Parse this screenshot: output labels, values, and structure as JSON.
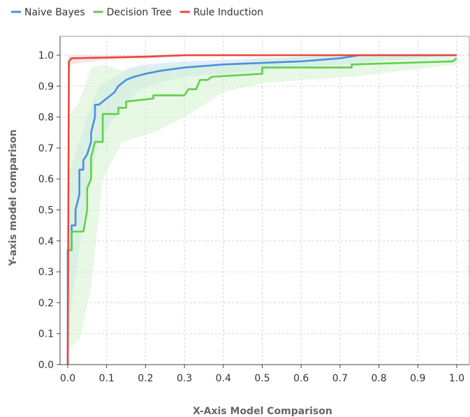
{
  "chart_data": {
    "type": "line",
    "title": "",
    "xlabel": "X-Axis Model Comparison",
    "ylabel": "Y-axis model comparison",
    "xlim": [
      0,
      1
    ],
    "ylim": [
      0,
      1
    ],
    "xticks": [
      "0.0",
      "0.1",
      "0.2",
      "0.3",
      "0.4",
      "0.5",
      "0.6",
      "0.7",
      "0.8",
      "0.9",
      "1.0"
    ],
    "yticks": [
      "0.0",
      "0.1",
      "0.2",
      "0.3",
      "0.4",
      "0.5",
      "0.6",
      "0.7",
      "0.8",
      "0.9",
      "1.0"
    ],
    "grid": true,
    "legend_position": "top-left",
    "series": [
      {
        "name": "Naive Bayes",
        "color": "#4a90e2",
        "band_color": "#c8def5",
        "points": [
          [
            0,
            0
          ],
          [
            0,
            0.37
          ],
          [
            0.01,
            0.37
          ],
          [
            0.01,
            0.45
          ],
          [
            0.02,
            0.45
          ],
          [
            0.02,
            0.5
          ],
          [
            0.03,
            0.55
          ],
          [
            0.03,
            0.63
          ],
          [
            0.04,
            0.63
          ],
          [
            0.04,
            0.66
          ],
          [
            0.05,
            0.68
          ],
          [
            0.06,
            0.72
          ],
          [
            0.06,
            0.75
          ],
          [
            0.07,
            0.8
          ],
          [
            0.07,
            0.84
          ],
          [
            0.08,
            0.84
          ],
          [
            0.09,
            0.85
          ],
          [
            0.1,
            0.86
          ],
          [
            0.11,
            0.87
          ],
          [
            0.12,
            0.88
          ],
          [
            0.13,
            0.9
          ],
          [
            0.14,
            0.91
          ],
          [
            0.15,
            0.92
          ],
          [
            0.17,
            0.93
          ],
          [
            0.2,
            0.94
          ],
          [
            0.24,
            0.95
          ],
          [
            0.3,
            0.96
          ],
          [
            0.4,
            0.97
          ],
          [
            0.5,
            0.975
          ],
          [
            0.6,
            0.98
          ],
          [
            0.7,
            0.99
          ],
          [
            0.75,
            1.0
          ],
          [
            1.0,
            1.0
          ]
        ],
        "band_upper": [
          [
            0,
            0.6
          ],
          [
            0.03,
            0.72
          ],
          [
            0.05,
            0.8
          ],
          [
            0.08,
            0.9
          ],
          [
            0.12,
            0.93
          ],
          [
            0.16,
            0.96
          ],
          [
            0.2,
            0.97
          ],
          [
            0.3,
            0.98
          ],
          [
            0.5,
            0.99
          ],
          [
            0.7,
            1.0
          ],
          [
            1.0,
            1.0
          ]
        ],
        "band_lower": [
          [
            0,
            0.1
          ],
          [
            0.03,
            0.38
          ],
          [
            0.05,
            0.55
          ],
          [
            0.08,
            0.72
          ],
          [
            0.12,
            0.8
          ],
          [
            0.16,
            0.86
          ],
          [
            0.2,
            0.9
          ],
          [
            0.3,
            0.93
          ],
          [
            0.5,
            0.95
          ],
          [
            0.7,
            0.97
          ],
          [
            1.0,
            1.0
          ]
        ]
      },
      {
        "name": "Decision Tree",
        "color": "#5ed14a",
        "band_color": "#d4f2cd",
        "points": [
          [
            0,
            0.37
          ],
          [
            0.01,
            0.37
          ],
          [
            0.01,
            0.43
          ],
          [
            0.04,
            0.43
          ],
          [
            0.05,
            0.5
          ],
          [
            0.05,
            0.57
          ],
          [
            0.06,
            0.6
          ],
          [
            0.06,
            0.67
          ],
          [
            0.07,
            0.72
          ],
          [
            0.09,
            0.72
          ],
          [
            0.09,
            0.81
          ],
          [
            0.13,
            0.81
          ],
          [
            0.13,
            0.83
          ],
          [
            0.15,
            0.83
          ],
          [
            0.15,
            0.85
          ],
          [
            0.22,
            0.86
          ],
          [
            0.22,
            0.87
          ],
          [
            0.3,
            0.87
          ],
          [
            0.31,
            0.89
          ],
          [
            0.33,
            0.89
          ],
          [
            0.34,
            0.92
          ],
          [
            0.36,
            0.92
          ],
          [
            0.37,
            0.93
          ],
          [
            0.5,
            0.94
          ],
          [
            0.5,
            0.96
          ],
          [
            0.73,
            0.96
          ],
          [
            0.73,
            0.97
          ],
          [
            0.99,
            0.98
          ],
          [
            1.0,
            0.99
          ]
        ],
        "band_upper": [
          [
            0,
            0.8
          ],
          [
            0.03,
            0.85
          ],
          [
            0.06,
            0.96
          ],
          [
            0.09,
            0.97
          ],
          [
            0.14,
            0.95
          ],
          [
            0.22,
            0.96
          ],
          [
            0.3,
            0.97
          ],
          [
            0.4,
            0.97
          ],
          [
            0.5,
            0.99
          ],
          [
            0.73,
            1.0
          ],
          [
            1.0,
            1.0
          ]
        ],
        "band_lower": [
          [
            0,
            0.05
          ],
          [
            0.03,
            0.08
          ],
          [
            0.06,
            0.25
          ],
          [
            0.09,
            0.6
          ],
          [
            0.14,
            0.72
          ],
          [
            0.22,
            0.75
          ],
          [
            0.3,
            0.8
          ],
          [
            0.4,
            0.88
          ],
          [
            0.5,
            0.91
          ],
          [
            0.73,
            0.93
          ],
          [
            1.0,
            0.97
          ]
        ]
      },
      {
        "name": "Rule Induction",
        "color": "#e8483c",
        "band_color": "#f6d2cf",
        "points": [
          [
            0,
            0
          ],
          [
            0.003,
            0.98
          ],
          [
            0.01,
            0.99
          ],
          [
            0.2,
            0.995
          ],
          [
            0.3,
            1.0
          ],
          [
            1.0,
            1.0
          ]
        ],
        "band_upper": [
          [
            0,
            1.0
          ],
          [
            0.02,
            1.0
          ],
          [
            1.0,
            1.0
          ]
        ],
        "band_lower": [
          [
            0,
            0.95
          ],
          [
            0.01,
            0.97
          ],
          [
            0.1,
            0.985
          ],
          [
            0.3,
            0.995
          ],
          [
            1.0,
            1.0
          ]
        ]
      }
    ]
  }
}
